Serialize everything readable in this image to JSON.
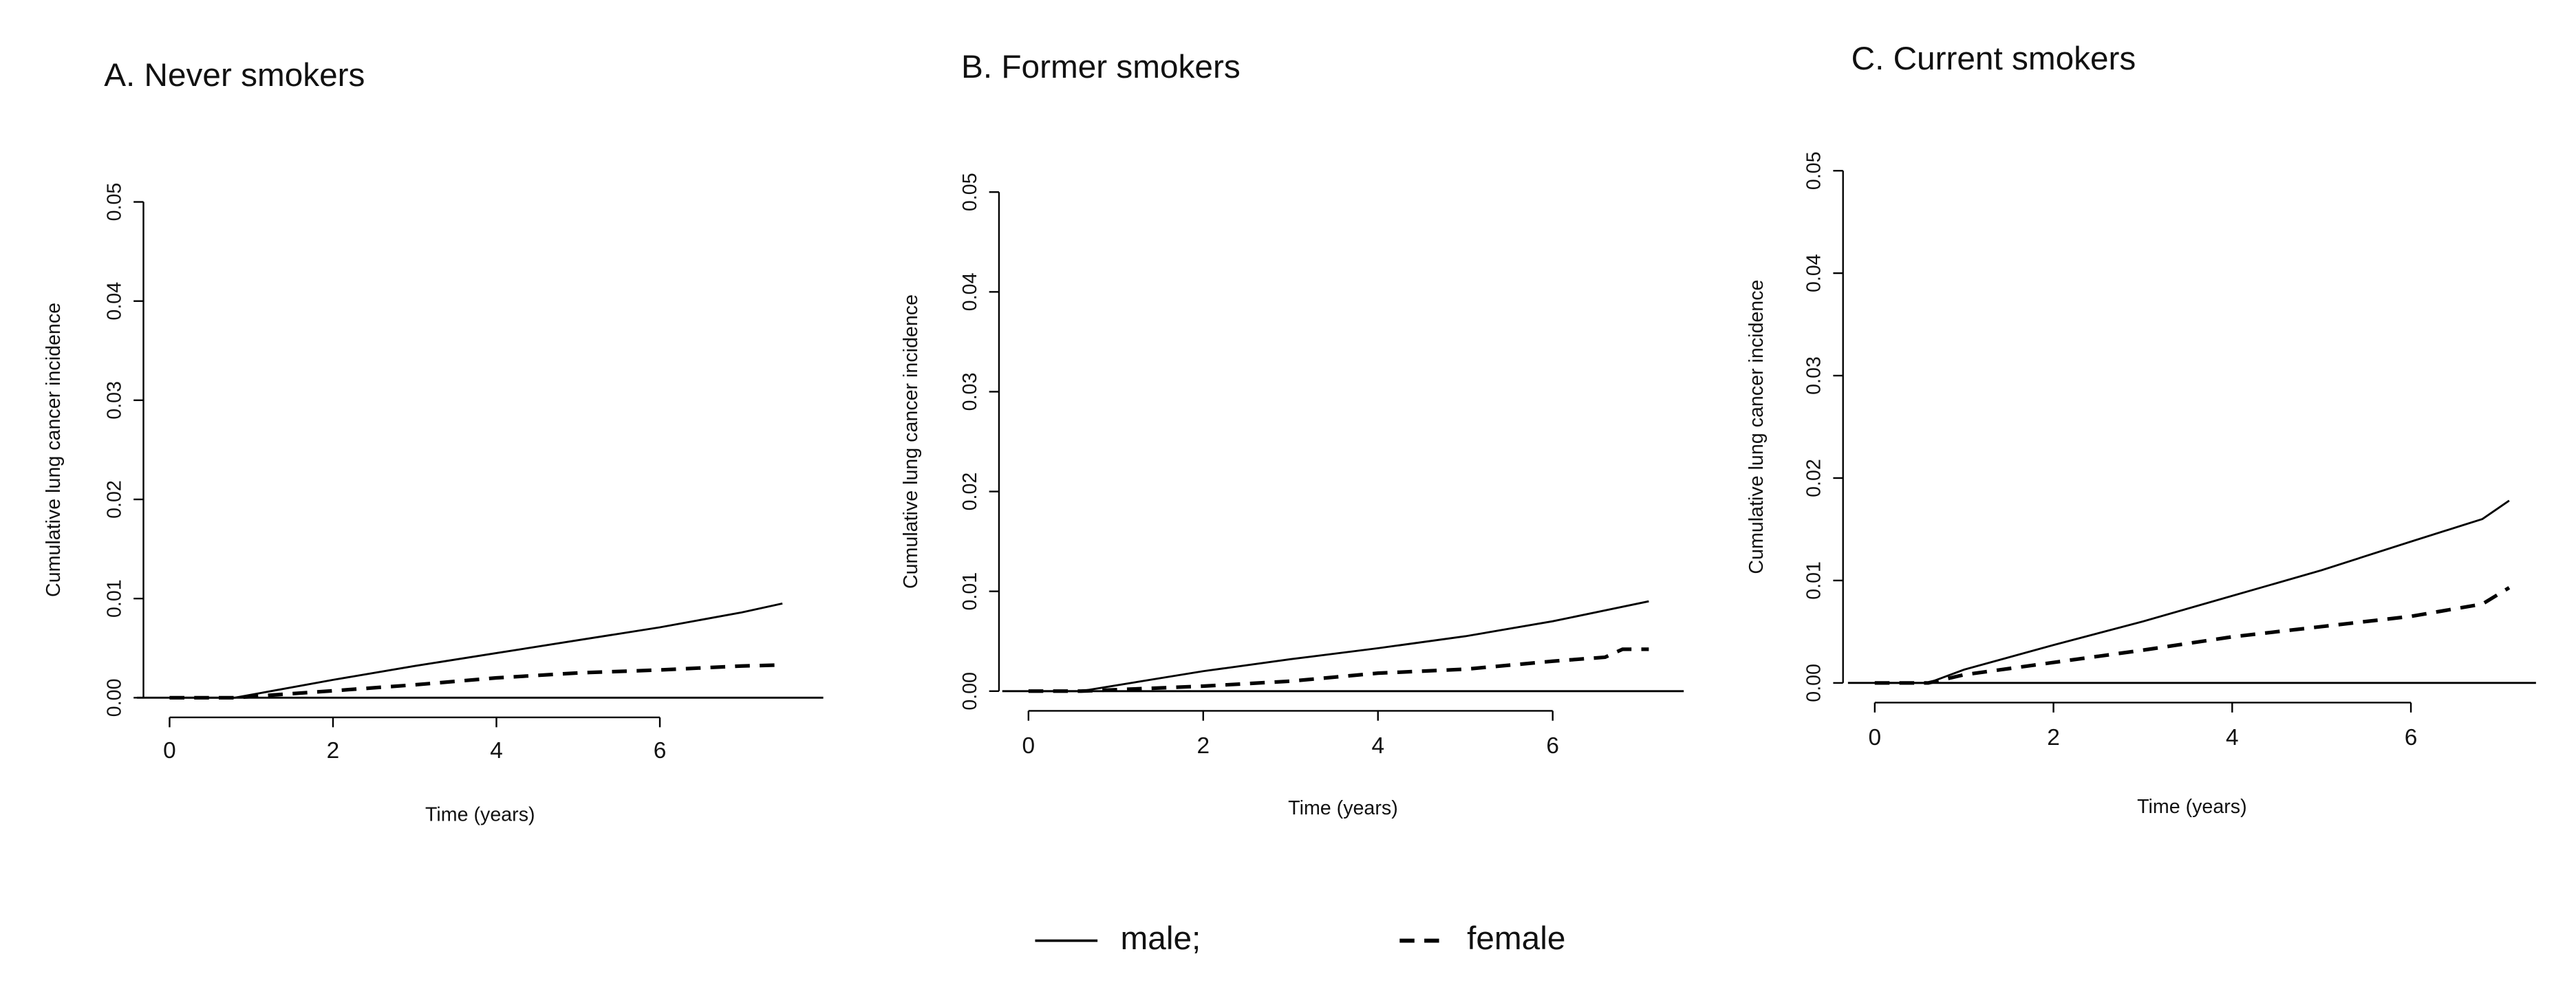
{
  "chart_data": [
    {
      "type": "line",
      "title": "A. Never smokers",
      "ylabel": "Cumulative lung cancer incidence",
      "xlabel": "Time (years)",
      "xlim": [
        -0.4,
        8
      ],
      "ylim": [
        0,
        0.05
      ],
      "xticks": [
        0,
        2,
        4,
        6
      ],
      "yticks": [
        {
          "value": 0,
          "label": "0.00"
        },
        {
          "value": 0.01,
          "label": "0.01"
        },
        {
          "value": 0.02,
          "label": "0.02"
        },
        {
          "value": 0.03,
          "label": "0.03"
        },
        {
          "value": 0.04,
          "label": "0.04"
        },
        {
          "value": 0.05,
          "label": "0.05"
        }
      ],
      "series": [
        {
          "name": "male;",
          "color": "#000000",
          "dash": "solid",
          "x": [
            0,
            0.8,
            2,
            3,
            4,
            5,
            6,
            7,
            7.5
          ],
          "values": [
            0,
            0,
            0.0018,
            0.0032,
            0.0045,
            0.0058,
            0.0071,
            0.0086,
            0.0095
          ]
        },
        {
          "name": "female",
          "color": "#000000",
          "dash": "dashed",
          "x": [
            0,
            0.8,
            2,
            3,
            4,
            5,
            6,
            7,
            7.5
          ],
          "values": [
            0,
            0,
            0.0007,
            0.0013,
            0.002,
            0.0025,
            0.0028,
            0.0032,
            0.0033
          ]
        }
      ]
    },
    {
      "type": "line",
      "title": "B. Former smokers",
      "ylabel": "Cumulative lung cancer incidence",
      "xlabel": "Time (years)",
      "xlim": [
        -0.3,
        7.5
      ],
      "ylim": [
        0,
        0.05
      ],
      "xticks": [
        0,
        2,
        4,
        6
      ],
      "yticks": [
        {
          "value": 0,
          "label": "0.00"
        },
        {
          "value": 0.01,
          "label": "0.01"
        },
        {
          "value": 0.02,
          "label": "0.02"
        },
        {
          "value": 0.03,
          "label": "0.03"
        },
        {
          "value": 0.04,
          "label": "0.04"
        },
        {
          "value": 0.05,
          "label": "0.05"
        }
      ],
      "series": [
        {
          "color": "#000000",
          "dash": "solid",
          "x": [
            0,
            0.6,
            2,
            3,
            4,
            5,
            6,
            7.1
          ],
          "values": [
            0,
            0,
            0.002,
            0.0032,
            0.0043,
            0.0055,
            0.007,
            0.009
          ]
        },
        {
          "color": "#000000",
          "dash": "dashed",
          "x": [
            0,
            0.6,
            2,
            3,
            4,
            5,
            6,
            6.6,
            6.8,
            7.1
          ],
          "values": [
            0,
            0,
            0.0005,
            0.001,
            0.0018,
            0.0022,
            0.003,
            0.0034,
            0.0042,
            0.0042
          ]
        }
      ]
    },
    {
      "type": "line",
      "title": "C. Current smokers",
      "ylabel": "Cumulative lung cancer incidence",
      "xlabel": "Time (years)",
      "xlim": [
        -0.3,
        7.4
      ],
      "ylim": [
        0,
        0.05
      ],
      "xticks": [
        0,
        2,
        4,
        6
      ],
      "yticks": [
        {
          "value": 0,
          "label": "0.00"
        },
        {
          "value": 0.01,
          "label": "0.01"
        },
        {
          "value": 0.02,
          "label": "0.02"
        },
        {
          "value": 0.03,
          "label": "0.03"
        },
        {
          "value": 0.04,
          "label": "0.04"
        },
        {
          "value": 0.05,
          "label": "0.05"
        }
      ],
      "series": [
        {
          "color": "#000000",
          "dash": "solid",
          "x": [
            0,
            0.6,
            1,
            2,
            3,
            4,
            5,
            6,
            6.8,
            7.1
          ],
          "values": [
            0,
            0,
            0.0013,
            0.0037,
            0.006,
            0.0085,
            0.011,
            0.0138,
            0.016,
            0.0178
          ]
        },
        {
          "color": "#000000",
          "dash": "dashed",
          "x": [
            0,
            0.6,
            1,
            2,
            3,
            4,
            5,
            6,
            6.8,
            7.1
          ],
          "values": [
            0,
            0,
            0.0008,
            0.002,
            0.0032,
            0.0045,
            0.0055,
            0.0065,
            0.0077,
            0.0093
          ]
        }
      ]
    }
  ]
}
